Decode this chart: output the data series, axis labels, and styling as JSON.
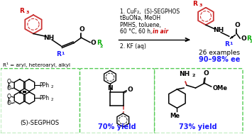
{
  "bg_color": "#ffffff",
  "reaction_line1": "1. CuF₂,  (S)-SEGPHOS",
  "reaction_line2": "tBuONa, MeOH",
  "reaction_line3": "PMHS, toluene,",
  "reaction_line4_pre": "60 °C, 60 h, ",
  "reaction_line4_italic": "in air",
  "reaction_line5": "2. KF (aq)",
  "r1_label": "R¹ = aryl, heteroaryl, alkyl",
  "examples_text": "26 examples",
  "ee_text": "90–98% ee",
  "segphos_label": "(S)-SEGPHOS",
  "yield1_text": "70% yield",
  "yield2_text": "73% yield",
  "yield_color": "#1a1aff",
  "ee_color": "#1a1aff",
  "r3_color": "#cc0000",
  "r1_color": "#1a1aff",
  "r2_color": "#00aa00",
  "box_color": "#55cc55",
  "in_air_color": "#cc0000",
  "black": "#000000",
  "ring_color_left": "#cc3333",
  "ring_color_right": "#cc3333"
}
